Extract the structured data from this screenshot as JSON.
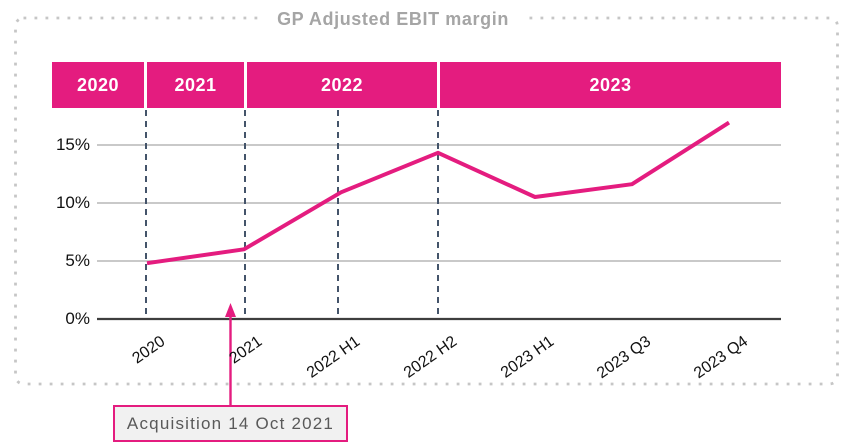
{
  "title": "GP Adjusted EBIT margin",
  "top_bands": [
    "2020",
    "2021",
    "2022",
    "2023"
  ],
  "annotation": {
    "label": "Acquisition 14 Oct 2021",
    "arrow_target": "2021"
  },
  "colors": {
    "magenta": "#E41C7F",
    "grid": "#C9C9C9",
    "axis": "#3E3E3E",
    "guide": "#44546A",
    "frame": "#C6C6C6",
    "titlegray": "#A5A5A5",
    "anntext": "#595959",
    "annbg": "#F1F1F1"
  },
  "chart_data": {
    "type": "line",
    "title": "GP Adjusted EBIT margin",
    "categories": [
      "2020",
      "2021",
      "2022 H1",
      "2022 H2",
      "2023 H1",
      "2023 Q3",
      "2023 Q4"
    ],
    "series": [
      {
        "name": "GP Adjusted EBIT margin",
        "values": [
          4.8,
          6.0,
          10.9,
          14.3,
          10.5,
          11.6,
          16.9
        ]
      }
    ],
    "unit": "%",
    "ylim": [
      0,
      18
    ],
    "ytick_labels": [
      "0%",
      "5%",
      "10%",
      "15%"
    ],
    "grid": "horizontal-only",
    "legend": "none",
    "top_axis_bands": [
      "2020",
      "2021",
      "2022",
      "2023"
    ],
    "dashed_guides_at_categories": [
      "2020",
      "2021",
      "2022 H1",
      "2022 H2"
    ],
    "line_color": "#E41C7F"
  }
}
